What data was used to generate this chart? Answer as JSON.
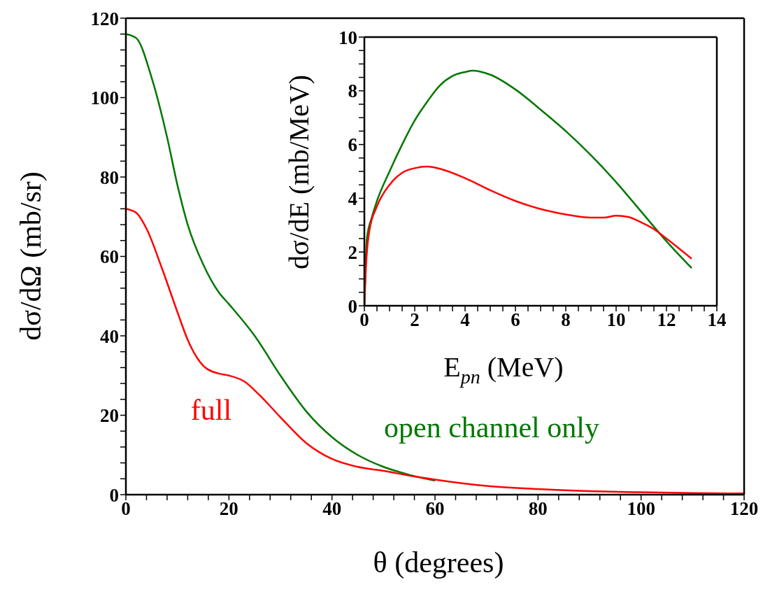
{
  "chart_data": [
    {
      "type": "line",
      "xlabel": "θ (degrees)",
      "ylabel": "dσ/dΩ (mb/sr)",
      "xlim": [
        0,
        120
      ],
      "ylim": [
        0,
        120
      ],
      "xticks": [
        0,
        {
          "value": 4,
          "label": null
        },
        {
          "value": 8,
          "label": null
        },
        {
          "value": 12,
          "label": null
        },
        {
          "value": 16,
          "label": null
        },
        20,
        {
          "value": 24,
          "label": null
        },
        {
          "value": 28,
          "label": null
        },
        {
          "value": 32,
          "label": null
        },
        {
          "value": 36,
          "label": null
        },
        40,
        {
          "value": 44,
          "label": null
        },
        {
          "value": 48,
          "label": null
        },
        {
          "value": 52,
          "label": null
        },
        {
          "value": 56,
          "label": null
        },
        60,
        {
          "value": 64,
          "label": null
        },
        {
          "value": 68,
          "label": null
        },
        {
          "value": 72,
          "label": null
        },
        {
          "value": 76,
          "label": null
        },
        80,
        {
          "value": 84,
          "label": null
        },
        {
          "value": 88,
          "label": null
        },
        {
          "value": 92,
          "label": null
        },
        {
          "value": 96,
          "label": null
        },
        100,
        {
          "value": 104,
          "label": null
        },
        {
          "value": 108,
          "label": null
        },
        {
          "value": 112,
          "label": null
        },
        {
          "value": 116,
          "label": null
        },
        120
      ],
      "yticks": [
        0,
        {
          "value": 4,
          "label": null
        },
        {
          "value": 8,
          "label": null
        },
        {
          "value": 12,
          "label": null
        },
        {
          "value": 16,
          "label": null
        },
        20,
        {
          "value": 24,
          "label": null
        },
        {
          "value": 28,
          "label": null
        },
        {
          "value": 32,
          "label": null
        },
        {
          "value": 36,
          "label": null
        },
        40,
        {
          "value": 44,
          "label": null
        },
        {
          "value": 48,
          "label": null
        },
        {
          "value": 52,
          "label": null
        },
        {
          "value": 56,
          "label": null
        },
        60,
        {
          "value": 64,
          "label": null
        },
        {
          "value": 68,
          "label": null
        },
        {
          "value": 72,
          "label": null
        },
        {
          "value": 76,
          "label": null
        },
        80,
        {
          "value": 84,
          "label": null
        },
        {
          "value": 88,
          "label": null
        },
        {
          "value": 92,
          "label": null
        },
        {
          "value": 96,
          "label": null
        },
        100,
        {
          "value": 104,
          "label": null
        },
        {
          "value": 108,
          "label": null
        },
        {
          "value": 112,
          "label": null
        },
        {
          "value": 116,
          "label": null
        },
        120
      ],
      "series": [
        {
          "name": "full",
          "color": "#ff0000",
          "x": [
            0,
            2,
            4,
            7,
            10,
            12,
            15,
            18,
            20,
            23,
            26,
            30,
            35,
            40,
            45,
            50,
            55,
            60,
            70,
            80,
            90,
            100,
            110,
            120
          ],
          "values": [
            72,
            71,
            67,
            57,
            46,
            39,
            32.5,
            30.5,
            30,
            28.5,
            25,
            19.5,
            13,
            9,
            7,
            6,
            4.8,
            3.8,
            2.2,
            1.4,
            0.9,
            0.6,
            0.4,
            0.3
          ]
        },
        {
          "name": "open channel only",
          "color": "#007700",
          "x": [
            0,
            2,
            5,
            8,
            10,
            12,
            15,
            18,
            20,
            25,
            30,
            35,
            40,
            45,
            50,
            55,
            60
          ],
          "values": [
            116,
            115,
            105,
            90,
            78,
            68,
            58,
            51,
            48,
            40,
            30,
            21,
            14.5,
            10,
            7,
            5,
            3.5
          ]
        }
      ]
    },
    {
      "type": "line",
      "xlabel": "E$_{pn}$ (MeV)",
      "ylabel": "dσ/dE (mb/MeV)",
      "xlim": [
        0,
        14
      ],
      "ylim": [
        0,
        10
      ],
      "xticks": [
        0,
        {
          "value": 0.5,
          "label": null
        },
        {
          "value": 1,
          "label": null
        },
        {
          "value": 1.5,
          "label": null
        },
        2,
        {
          "value": 2.5,
          "label": null
        },
        {
          "value": 3,
          "label": null
        },
        {
          "value": 3.5,
          "label": null
        },
        4,
        {
          "value": 4.5,
          "label": null
        },
        {
          "value": 5,
          "label": null
        },
        {
          "value": 5.5,
          "label": null
        },
        6,
        {
          "value": 6.5,
          "label": null
        },
        {
          "value": 7,
          "label": null
        },
        {
          "value": 7.5,
          "label": null
        },
        8,
        {
          "value": 8.5,
          "label": null
        },
        {
          "value": 9,
          "label": null
        },
        {
          "value": 9.5,
          "label": null
        },
        10,
        {
          "value": 10.5,
          "label": null
        },
        {
          "value": 11,
          "label": null
        },
        {
          "value": 11.5,
          "label": null
        },
        12,
        {
          "value": 12.5,
          "label": null
        },
        {
          "value": 13,
          "label": null
        },
        {
          "value": 13.5,
          "label": null
        },
        14
      ],
      "yticks": [
        0,
        {
          "value": 0.5,
          "label": null
        },
        {
          "value": 1,
          "label": null
        },
        {
          "value": 1.5,
          "label": null
        },
        2,
        {
          "value": 2.5,
          "label": null
        },
        {
          "value": 3,
          "label": null
        },
        {
          "value": 3.5,
          "label": null
        },
        4,
        {
          "value": 4.5,
          "label": null
        },
        {
          "value": 5,
          "label": null
        },
        {
          "value": 5.5,
          "label": null
        },
        6,
        {
          "value": 6.5,
          "label": null
        },
        {
          "value": 7,
          "label": null
        },
        {
          "value": 7.5,
          "label": null
        },
        8,
        {
          "value": 8.5,
          "label": null
        },
        {
          "value": 9,
          "label": null
        },
        {
          "value": 9.5,
          "label": null
        },
        10
      ],
      "series": [
        {
          "color": "#ff0000",
          "x": [
            0,
            0.05,
            0.1,
            0.2,
            0.5,
            1,
            1.5,
            2,
            2.5,
            3,
            4,
            5,
            6,
            7,
            8,
            9,
            9.5,
            10,
            10.5,
            11,
            11.5,
            12,
            13
          ],
          "values": [
            0,
            1.2,
            2,
            2.8,
            3.7,
            4.5,
            4.95,
            5.12,
            5.18,
            5.1,
            4.75,
            4.3,
            3.9,
            3.6,
            3.4,
            3.28,
            3.28,
            3.35,
            3.3,
            3.1,
            2.85,
            2.5,
            1.75
          ]
        },
        {
          "color": "#007700",
          "x": [
            0,
            0.1,
            0.3,
            0.5,
            1,
            1.5,
            2,
            2.5,
            3,
            3.5,
            4,
            4.3,
            5,
            6,
            7,
            8,
            9,
            10,
            11,
            12,
            13
          ],
          "values": [
            0,
            2.5,
            3.3,
            3.9,
            5,
            6,
            6.9,
            7.6,
            8.2,
            8.55,
            8.7,
            8.75,
            8.6,
            8.05,
            7.3,
            6.5,
            5.6,
            4.6,
            3.5,
            2.4,
            1.4
          ]
        }
      ]
    }
  ]
}
